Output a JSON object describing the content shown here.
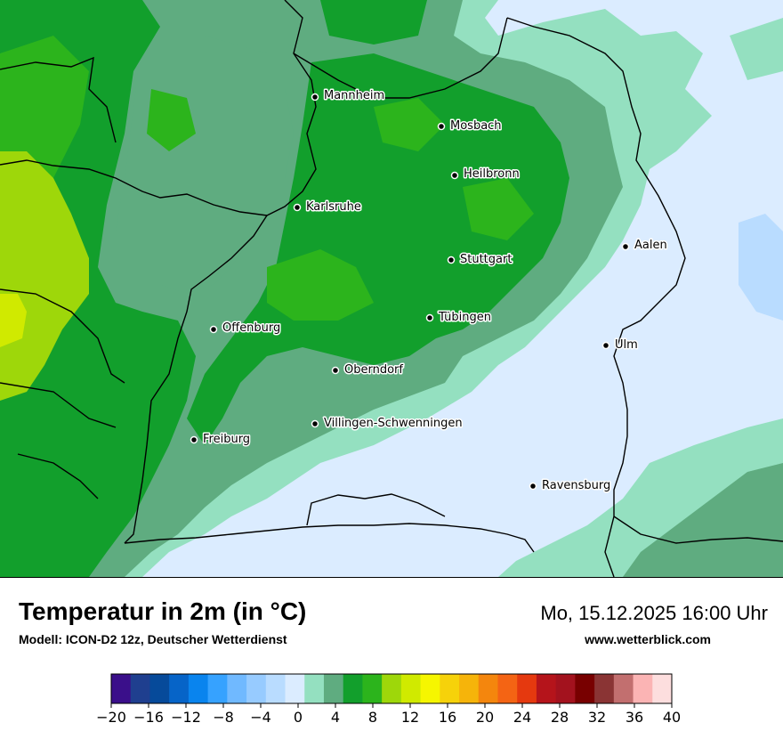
{
  "title": "Temperatur in 2m (in °C)",
  "subtitle": "Modell: ICON-D2 12z, Deutscher Wetterdienst",
  "datetime": "Mo, 15.12.2025 16:00 Uhr",
  "website": "www.wetterblick.com",
  "cities": [
    {
      "id": "mannheim",
      "name": "Mannheim"
    },
    {
      "id": "mosbach",
      "name": "Mosbach"
    },
    {
      "id": "heilbronn",
      "name": "Heilbronn"
    },
    {
      "id": "karlsruhe",
      "name": "Karlsruhe"
    },
    {
      "id": "aalen",
      "name": "Aalen"
    },
    {
      "id": "stuttgart",
      "name": "Stuttgart"
    },
    {
      "id": "tuebingen",
      "name": "Tübingen"
    },
    {
      "id": "offenburg",
      "name": "Offenburg"
    },
    {
      "id": "ulm",
      "name": "Ulm"
    },
    {
      "id": "oberndorf",
      "name": "Oberndorf"
    },
    {
      "id": "villingen",
      "name": "Villingen-Schwenningen"
    },
    {
      "id": "freiburg",
      "name": "Freiburg"
    },
    {
      "id": "ravensburg",
      "name": "Ravensburg"
    }
  ],
  "legend": {
    "unit": "°C",
    "min": -20,
    "max": 40,
    "step": 2,
    "tick_labels": [
      "−20",
      "−16",
      "−12",
      "−8",
      "−4",
      "0",
      "4",
      "8",
      "12",
      "16",
      "20",
      "24",
      "28",
      "32",
      "36",
      "40"
    ],
    "colors": [
      "#3a0f8a",
      "#1f3f8f",
      "#064a9a",
      "#0664c8",
      "#0984ee",
      "#36a2ff",
      "#70b9ff",
      "#97cbff",
      "#b9dcff",
      "#dbecff",
      "#94e0c0",
      "#5fac80",
      "#129f2c",
      "#2cb41c",
      "#9ed70a",
      "#d0ea00",
      "#f6f600",
      "#f6d20a",
      "#f6b40a",
      "#f4860d",
      "#f46414",
      "#e5390f",
      "#b5141b",
      "#a3121e",
      "#780000",
      "#8a3434",
      "#c26f6f",
      "#fbb4b4",
      "#fddede"
    ]
  },
  "map_colors": {
    "t0_2": "#dbecff",
    "t2_4": "#94e0c0",
    "t4_6": "#5fac80",
    "t6_8": "#129f2c",
    "t8_10": "#2cb41c",
    "t10_12": "#9ed70a",
    "t12_14": "#d0ea00"
  }
}
